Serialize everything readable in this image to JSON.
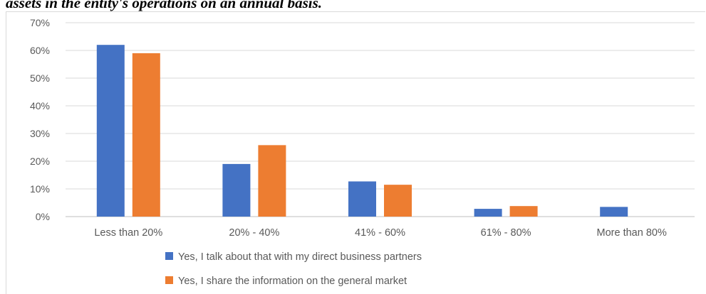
{
  "caption": "assets in the entity's operations on an annual basis.",
  "chart_data": {
    "type": "bar",
    "title": "",
    "xlabel": "",
    "ylabel": "",
    "ylim": [
      0,
      70
    ],
    "y_ticks": [
      "0%",
      "10%",
      "20%",
      "30%",
      "40%",
      "50%",
      "60%",
      "70%"
    ],
    "categories": [
      "Less than 20%",
      "20% - 40%",
      "41% - 60%",
      "61% - 80%",
      "More than 80%"
    ],
    "series": [
      {
        "name": "Yes, I talk about that with my direct business partners",
        "color": "#4472c4",
        "values": [
          62,
          19,
          12.7,
          2.8,
          3.5
        ]
      },
      {
        "name": "Yes, I share the information on the general market",
        "color": "#ed7d31",
        "values": [
          59,
          25.8,
          11.5,
          3.8,
          0
        ]
      }
    ],
    "grid": true,
    "legend_position": "bottom"
  }
}
